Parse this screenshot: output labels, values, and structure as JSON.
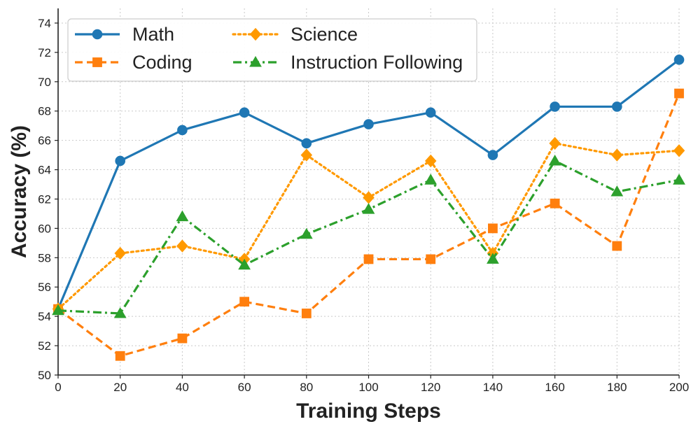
{
  "chart_data": {
    "type": "line",
    "xlabel": "Training Steps",
    "ylabel": "Accuracy (%)",
    "x": [
      0,
      20,
      40,
      60,
      80,
      100,
      120,
      140,
      160,
      180,
      200
    ],
    "xlim": [
      0,
      200
    ],
    "ylim": [
      50,
      75
    ],
    "xticks": [
      0,
      20,
      40,
      60,
      80,
      100,
      120,
      140,
      160,
      180,
      200
    ],
    "yticks": [
      50,
      52,
      54,
      56,
      58,
      60,
      62,
      64,
      66,
      68,
      70,
      72,
      74
    ],
    "grid": true,
    "legend_position": "top-left",
    "series": [
      {
        "name": "Math",
        "color": "#1f77b4",
        "linestyle": "solid",
        "marker": "circle",
        "values": [
          54.5,
          64.6,
          66.7,
          67.9,
          65.8,
          67.1,
          67.9,
          65.0,
          68.3,
          68.3,
          71.5
        ]
      },
      {
        "name": "Coding",
        "color": "#ff7f0e",
        "linestyle": "dashed",
        "marker": "square",
        "values": [
          54.5,
          51.3,
          52.5,
          55.0,
          54.2,
          57.9,
          57.9,
          60.0,
          61.7,
          58.8,
          69.2
        ]
      },
      {
        "name": "Science",
        "color": "#ff9900",
        "linestyle": "dotted",
        "marker": "diamond",
        "values": [
          54.5,
          58.3,
          58.8,
          57.9,
          65.0,
          62.1,
          64.6,
          58.3,
          65.8,
          65.0,
          65.3
        ]
      },
      {
        "name": "Instruction Following",
        "color": "#2ca02c",
        "linestyle": "dashdot",
        "marker": "triangle",
        "values": [
          54.4,
          54.2,
          60.8,
          57.5,
          59.6,
          61.3,
          63.3,
          57.9,
          64.6,
          62.5,
          63.3
        ]
      }
    ]
  }
}
